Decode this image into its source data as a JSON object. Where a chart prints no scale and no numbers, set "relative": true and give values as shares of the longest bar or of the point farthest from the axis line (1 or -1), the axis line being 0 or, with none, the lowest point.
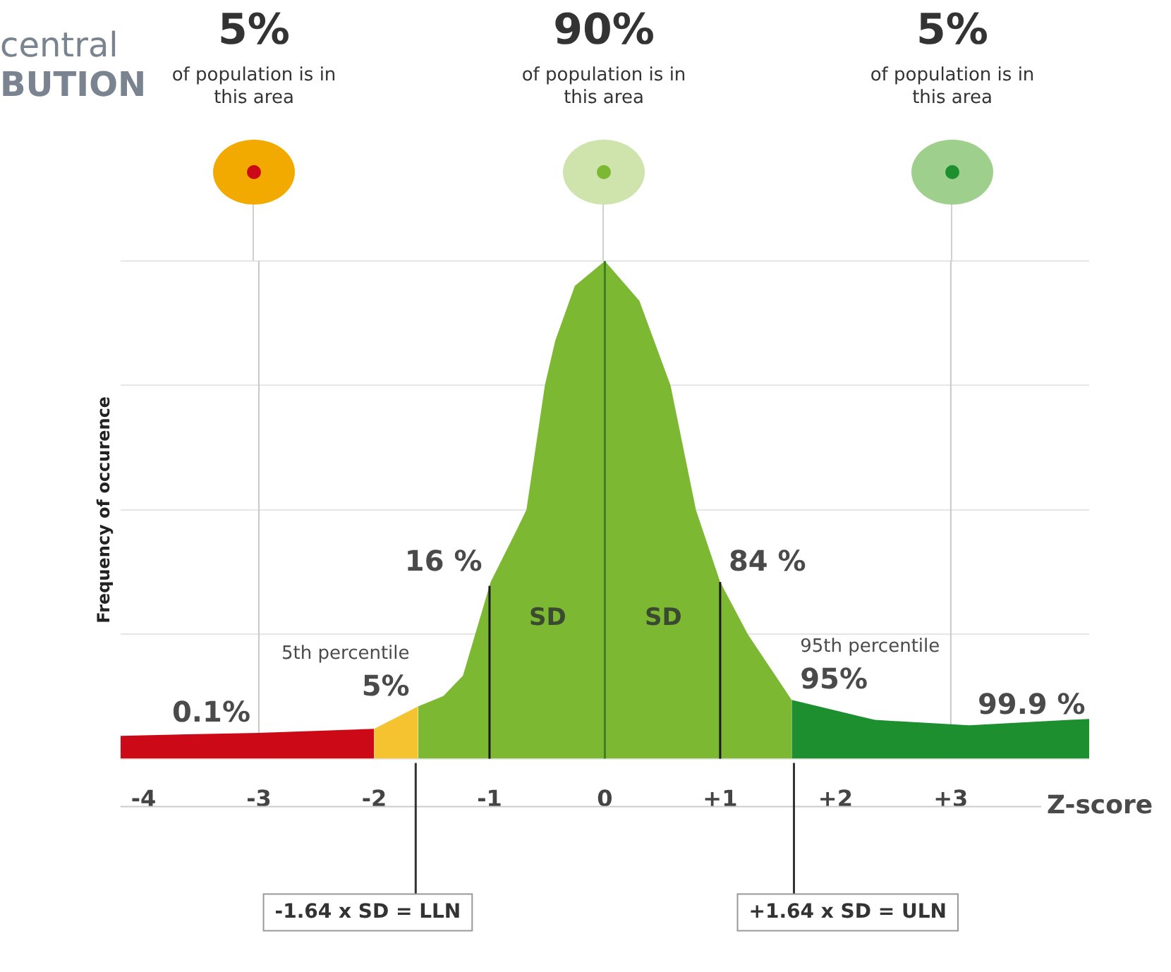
{
  "chart_data": {
    "type": "area",
    "relative": true,
    "grid": "y",
    "xlabel": "Z-score",
    "ylabel": "Frequency of occurence",
    "xlim": [
      -4.2,
      4.2
    ],
    "xticks": [
      -4,
      -3,
      -2,
      -1,
      0,
      {
        "value": 1,
        "label": "+1"
      },
      {
        "value": 2,
        "label": "+2"
      },
      {
        "value": 3,
        "label": "+3"
      }
    ],
    "legend": false,
    "marker": "none",
    "series": [
      {
        "color": "#cc0a17",
        "x": [
          -4.2,
          -3,
          -2
        ],
        "values": [
          0.046,
          0.052,
          0.06
        ]
      },
      {
        "color": "#f5c230",
        "x": [
          -2,
          -1.62
        ],
        "values": [
          0.06,
          0.105
        ]
      },
      {
        "color": "#7cb832",
        "x": [
          -1.62,
          -1.4,
          -1.23,
          -0.99,
          -0.77,
          -0.68,
          -0.52,
          -0.43,
          -0.26,
          0,
          0.3,
          0.57,
          0.79,
          1,
          1.24,
          1.62
        ],
        "values": [
          0.105,
          0.126,
          0.167,
          0.355,
          0.457,
          0.5,
          0.75,
          0.84,
          0.95,
          1,
          0.92,
          0.75,
          0.5,
          0.355,
          0.25,
          0.118
        ]
      },
      {
        "color": "#1e8f2e",
        "x": [
          1.62,
          2.34,
          3.16,
          4.2
        ],
        "values": [
          0.118,
          0.078,
          0.067,
          0.08
        ]
      }
    ],
    "ref_lines": [
      {
        "axis": "x",
        "value": -3,
        "color": "#c8c8c8"
      },
      {
        "axis": "x",
        "value": 0,
        "color": "#3f7f1f"
      },
      {
        "axis": "x",
        "value": 3,
        "color": "#c8c8c8"
      },
      {
        "axis": "x",
        "value": -1,
        "color": "#1a1a1a"
      },
      {
        "axis": "x",
        "value": 1,
        "color": "#1a1a1a"
      },
      {
        "axis": "x",
        "value": -1.64,
        "label": "-1.64 x SD = LLN",
        "color": "#333333"
      },
      {
        "axis": "x",
        "value": 1.64,
        "label": "+1.64 x SD = ULN",
        "color": "#333333"
      }
    ],
    "annotations": [
      "central",
      "BUTION",
      "5%",
      "of population is in this area",
      "90%",
      "of population is in this area",
      "5%",
      "of population is in this area",
      "SD",
      "SD",
      {
        "text": "16 %",
        "x": -0.99,
        "y": 0.355
      },
      {
        "text": "84 %",
        "x": 1,
        "y": 0.355
      },
      {
        "text": "5%",
        "x": -1.62,
        "y": 0.105
      },
      {
        "text": "5th percentile",
        "x": -1.62,
        "y": 0.105
      },
      {
        "text": "95%",
        "x": 1.62,
        "y": 0.118
      },
      {
        "text": "95th percentile",
        "x": 1.62,
        "y": 0.118
      },
      {
        "text": "0.1%",
        "x": -3,
        "y": 0.052
      },
      {
        "text": "99.9 %",
        "x": 3.16,
        "y": 0.067
      }
    ]
  }
}
